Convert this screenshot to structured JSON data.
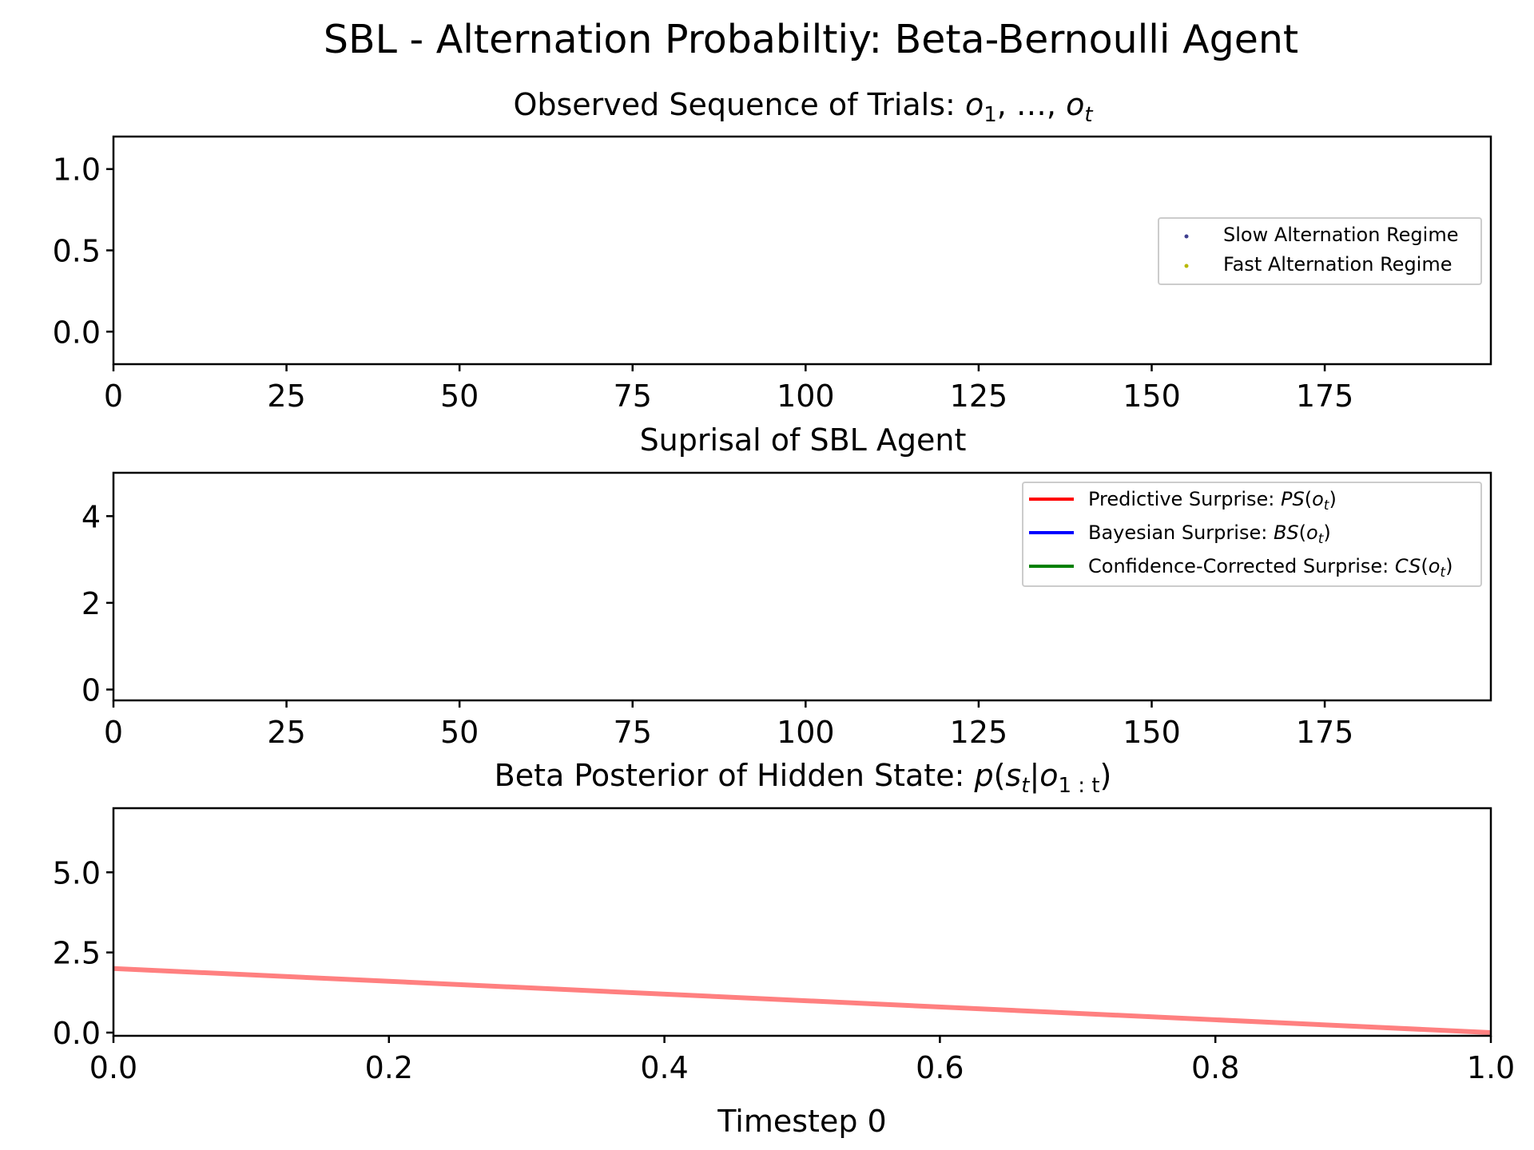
{
  "figure": {
    "suptitle": "SBL - Alternation Probabiltiy: Beta-Bernoulli Agent",
    "xlabel_bottom": "Timestep 0"
  },
  "panels": [
    {
      "title_text": "Observed Sequence of Trials: ",
      "title_math": [
        "o",
        "1",
        ", …, ",
        "o",
        "t"
      ],
      "legend": [
        {
          "label": "Slow Alternation Regime",
          "color": "#3f3f8f",
          "marker": "dot"
        },
        {
          "label": "Fast Alternation Regime",
          "color": "#b8b800",
          "marker": "dot"
        }
      ]
    },
    {
      "title_text": "Suprisal of SBL Agent",
      "legend": [
        {
          "label_text": "Predictive Surprise: ",
          "label_math": [
            "PS",
            "(",
            "o",
            "t",
            ")"
          ],
          "color": "#ff0000"
        },
        {
          "label_text": "Bayesian Surprise: ",
          "label_math": [
            "BS",
            "(",
            "o",
            "t",
            ")"
          ],
          "color": "#0000ff"
        },
        {
          "label_text": "Confidence-Corrected Surprise: ",
          "label_math": [
            "CS",
            "(",
            "o",
            "t",
            ")"
          ],
          "color": "#008000"
        }
      ]
    },
    {
      "title_text": "Beta Posterior of Hidden State: ",
      "title_math": [
        "p",
        "(",
        "s",
        "t",
        "|",
        "o",
        "1 : t",
        ")"
      ]
    }
  ],
  "chart_data": [
    {
      "type": "scatter",
      "title": "Observed Sequence of Trials: o_1, ..., o_t",
      "xlim": [
        0,
        199
      ],
      "ylim": [
        -0.2,
        1.2
      ],
      "xticks": [
        0,
        25,
        50,
        75,
        100,
        125,
        150,
        175
      ],
      "yticks": [
        0.0,
        0.5,
        1.0
      ],
      "ytick_labels": [
        "0.0",
        "0.5",
        "1.0"
      ],
      "series": [
        {
          "name": "Slow Alternation Regime",
          "color": "#3f3f8f",
          "x": [],
          "y": []
        },
        {
          "name": "Fast Alternation Regime",
          "color": "#b8b800",
          "x": [],
          "y": []
        }
      ],
      "legend_position": "center-right"
    },
    {
      "type": "line",
      "title": "Suprisal of SBL Agent",
      "xlim": [
        0,
        199
      ],
      "ylim": [
        -0.25,
        5
      ],
      "xticks": [
        0,
        25,
        50,
        75,
        100,
        125,
        150,
        175
      ],
      "yticks": [
        0,
        2,
        4
      ],
      "ytick_labels": [
        "0",
        "2",
        "4"
      ],
      "series": [
        {
          "name": "Predictive Surprise: PS(o_t)",
          "color": "#ff0000",
          "x": [],
          "y": []
        },
        {
          "name": "Bayesian Surprise: BS(o_t)",
          "color": "#0000ff",
          "x": [],
          "y": []
        },
        {
          "name": "Confidence-Corrected Surprise: CS(o_t)",
          "color": "#008000",
          "x": [],
          "y": []
        }
      ],
      "legend_position": "top-right"
    },
    {
      "type": "line",
      "title": "Beta Posterior of Hidden State: p(s_t|o_1:t)",
      "xlabel": "Timestep 0",
      "xlim": [
        0,
        1
      ],
      "ylim": [
        -0.1,
        7
      ],
      "xticks": [
        0.0,
        0.2,
        0.4,
        0.6,
        0.8,
        1.0
      ],
      "xtick_labels": [
        "0.0",
        "0.2",
        "0.4",
        "0.6",
        "0.8",
        "1.0"
      ],
      "yticks": [
        0.0,
        2.5,
        5.0
      ],
      "ytick_labels": [
        "0.0",
        "2.5",
        "5.0"
      ],
      "series": [
        {
          "name": "Beta posterior density",
          "color": "#ff8080",
          "x": [
            0.0,
            1.0
          ],
          "y": [
            2.0,
            0.0
          ]
        }
      ]
    }
  ]
}
